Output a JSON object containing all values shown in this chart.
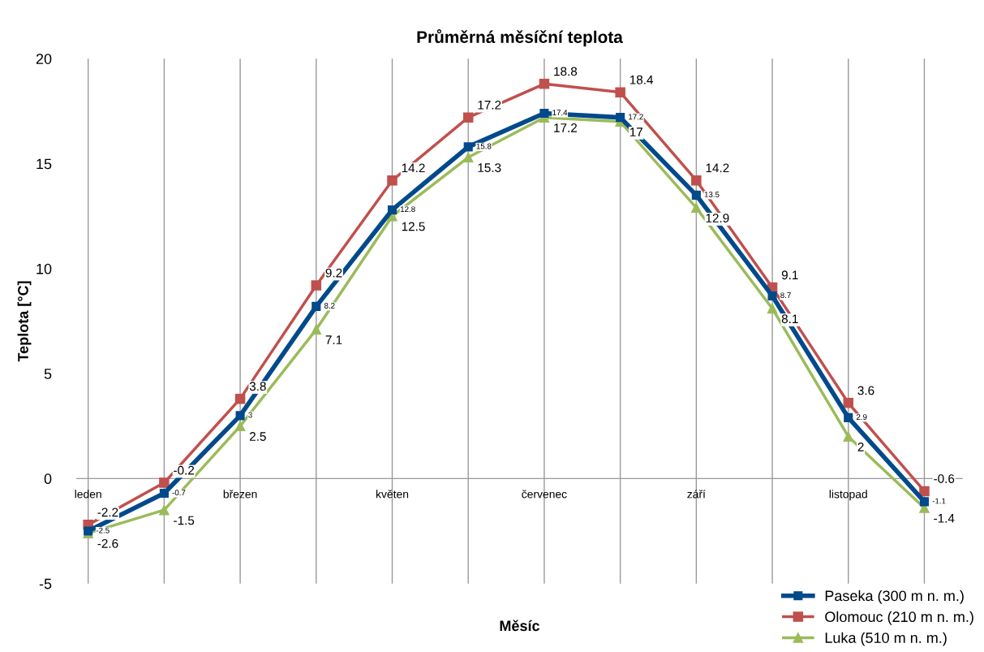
{
  "chart_data": {
    "type": "line",
    "title": "Průměrná měsíční teplota",
    "xlabel": "Měsíc",
    "ylabel": "Teplota [°C]",
    "categories": [
      "leden",
      null,
      "březen",
      null,
      "květen",
      null,
      "červenec",
      null,
      "září",
      null,
      "listopad",
      null
    ],
    "series": [
      {
        "name": "Paseka (300 m n. m.)",
        "color": "#004a8c",
        "marker": "square",
        "values": [
          -2.5,
          -0.7,
          3,
          8.2,
          12.8,
          15.8,
          17.4,
          17.2,
          13.5,
          8.7,
          2.9,
          -1.1
        ]
      },
      {
        "name": "Olomouc (210 m n. m.)",
        "color": "#c0504d",
        "marker": "square",
        "values": [
          -2.2,
          -0.2,
          3.8,
          9.2,
          14.2,
          17.2,
          18.8,
          18.4,
          14.2,
          9.1,
          3.6,
          -0.6
        ]
      },
      {
        "name": "Luka (510 m n. m.)",
        "color": "#9bbb59",
        "marker": "triangle",
        "values": [
          -2.6,
          -1.5,
          2.5,
          7.1,
          12.5,
          15.3,
          17.2,
          17,
          12.9,
          8.1,
          2,
          -1.4
        ]
      }
    ],
    "ylim": [
      -5,
      20
    ],
    "yticks": [
      -5,
      0,
      5,
      10,
      15,
      20
    ],
    "grid": "x",
    "legend": "bottom right",
    "data_labels": true,
    "line_style": "solid"
  }
}
